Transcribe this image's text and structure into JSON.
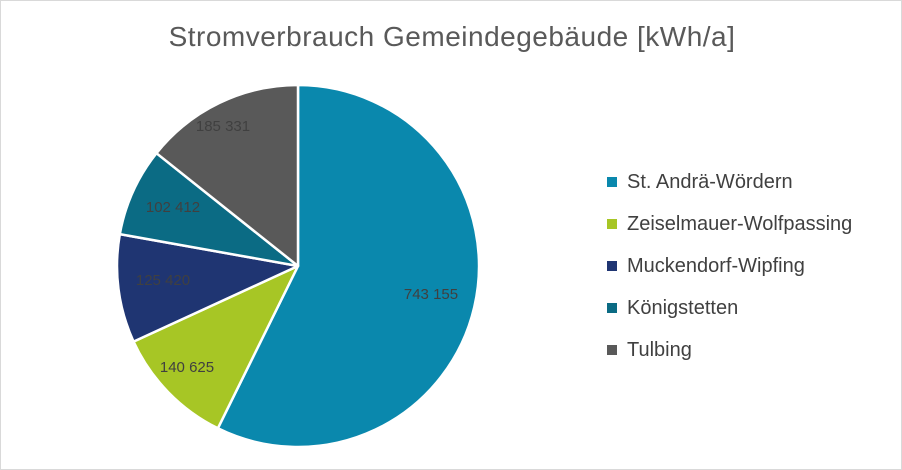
{
  "chart_data": {
    "type": "pie",
    "title": "Stromverbrauch Gemeindegebäude [kWh/a]",
    "categories": [
      "St. Andrä-Wördern",
      "Zeiselmauer-Wolfpassing",
      "Muckendorf-Wipfing",
      "Königstetten",
      "Tulbing"
    ],
    "values": [
      743155,
      140625,
      125420,
      102412,
      185331
    ],
    "data_labels": [
      "743 155",
      "140 625",
      "125 420",
      "102 412",
      "185 331"
    ],
    "colors": [
      "#0a88ad",
      "#a7c625",
      "#1f3572",
      "#0b6b84",
      "#595959"
    ],
    "legend_position": "right"
  }
}
